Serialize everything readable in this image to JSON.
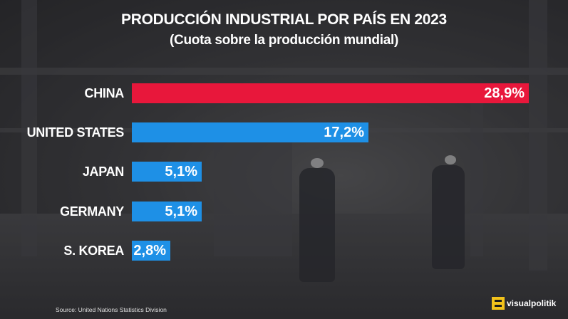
{
  "title": "PRODUCCIÓN INDUSTRIAL POR PAÍS EN 2023",
  "subtitle": "(Cuota sobre la producción mundial)",
  "source": "Source: United Nations Statistics Division",
  "brand": "visualpolitik",
  "colors": {
    "highlight": "#e8173b",
    "bar": "#1e90e6",
    "brand_mark": "#f2c21b"
  },
  "chart_data": {
    "type": "bar",
    "orientation": "horizontal",
    "title": "PRODUCCIÓN INDUSTRIAL POR PAÍS EN 2023",
    "subtitle": "(Cuota sobre la producción mundial)",
    "categories": [
      "CHINA",
      "UNITED STATES",
      "JAPAN",
      "GERMANY",
      "S. KOREA"
    ],
    "values": [
      28.9,
      17.2,
      5.1,
      5.1,
      2.8
    ],
    "value_labels": [
      "28,9%",
      "17,2%",
      "5,1%",
      "5,1%",
      "2,8%"
    ],
    "unit": "%",
    "bar_colors": [
      "#e8173b",
      "#1e90e6",
      "#1e90e6",
      "#1e90e6",
      "#1e90e6"
    ],
    "grid": false,
    "legend": "none"
  }
}
